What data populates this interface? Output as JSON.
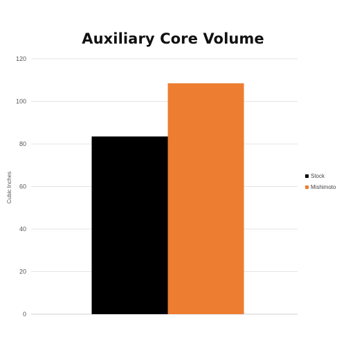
{
  "chart_data": {
    "type": "bar",
    "title": "Auxiliary Core Volume",
    "xlabel": "",
    "ylabel": "Cubic Inches",
    "ylim": [
      0,
      120
    ],
    "yticks": [
      0,
      20,
      40,
      60,
      80,
      100,
      120
    ],
    "grid": true,
    "legend_position": "right",
    "categories": [
      ""
    ],
    "series": [
      {
        "name": "Stock",
        "values": [
          83.5
        ],
        "color": "#000000"
      },
      {
        "name": "Mishimoto",
        "values": [
          108.5
        ],
        "color": "#ED7D31"
      }
    ]
  }
}
